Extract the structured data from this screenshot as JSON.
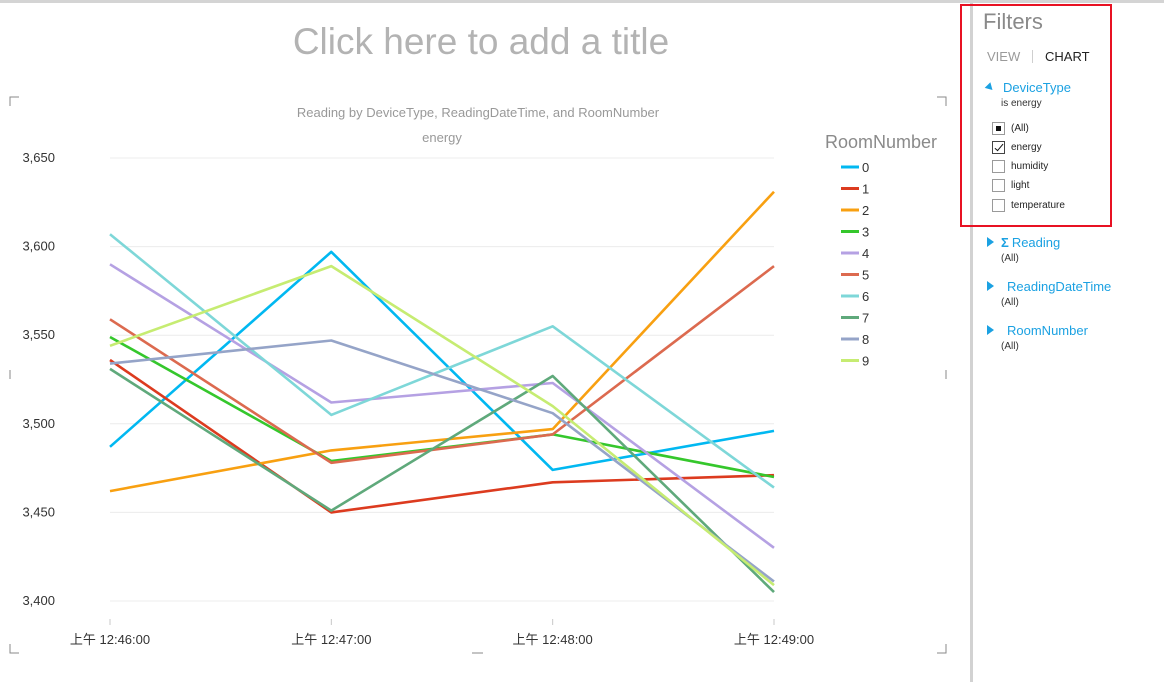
{
  "canvas": {
    "title_placeholder": "Click here to add a title"
  },
  "filters_pane": {
    "title": "Filters",
    "tabs": [
      "VIEW",
      "CHART"
    ],
    "active_tab": "CHART",
    "highlight_color": "#e81123",
    "fields": [
      {
        "name": "DeviceType",
        "expanded": true,
        "summary": "is energy",
        "options": [
          {
            "label": "(All)",
            "state": "partial"
          },
          {
            "label": "energy",
            "state": "checked"
          },
          {
            "label": "humidity",
            "state": "unchecked"
          },
          {
            "label": "light",
            "state": "unchecked"
          },
          {
            "label": "temperature",
            "state": "unchecked"
          }
        ]
      },
      {
        "name": "Reading",
        "expanded": false,
        "summary": "(All)",
        "icon": "sigma-icon"
      },
      {
        "name": "ReadingDateTime",
        "expanded": false,
        "summary": "(All)"
      },
      {
        "name": "RoomNumber",
        "expanded": false,
        "summary": "(All)"
      }
    ]
  },
  "chart_data": {
    "type": "line",
    "title": "Reading by DeviceType, ReadingDateTime, and RoomNumber",
    "subtitle": "energy",
    "xlabel": "",
    "ylabel": "",
    "categories": [
      "上午 12:46:00",
      "上午 12:47:00",
      "上午 12:48:00",
      "上午 12:49:00"
    ],
    "y_ticks": [
      "3,400",
      "3,450",
      "3,500",
      "3,550",
      "3,600",
      "3,650"
    ],
    "ylim": [
      3400,
      3650
    ],
    "grid": true,
    "legend_title": "RoomNumber",
    "legend_position": "right",
    "series": [
      {
        "name": "0",
        "color": "#01b8f1",
        "values": [
          3487,
          3597,
          3474,
          3496
        ]
      },
      {
        "name": "1",
        "color": "#dc3b1f",
        "values": [
          3536,
          3450,
          3467,
          3471
        ]
      },
      {
        "name": "2",
        "color": "#f8a011",
        "values": [
          3462,
          3485,
          3497,
          3631
        ]
      },
      {
        "name": "3",
        "color": "#35c72c",
        "values": [
          3549,
          3479,
          3494,
          3470
        ]
      },
      {
        "name": "4",
        "color": "#b5a1e3",
        "values": [
          3590,
          3512,
          3523,
          3430
        ]
      },
      {
        "name": "5",
        "color": "#dc6a4f",
        "values": [
          3559,
          3478,
          3494,
          3589
        ]
      },
      {
        "name": "6",
        "color": "#7ed7d8",
        "values": [
          3607,
          3505,
          3555,
          3464
        ]
      },
      {
        "name": "7",
        "color": "#5fa97b",
        "values": [
          3531,
          3451,
          3527,
          3405
        ]
      },
      {
        "name": "8",
        "color": "#95a4c8",
        "values": [
          3534,
          3547,
          3506,
          3411
        ]
      },
      {
        "name": "9",
        "color": "#c6ec72",
        "values": [
          3544,
          3589,
          3510,
          3409
        ]
      }
    ]
  }
}
